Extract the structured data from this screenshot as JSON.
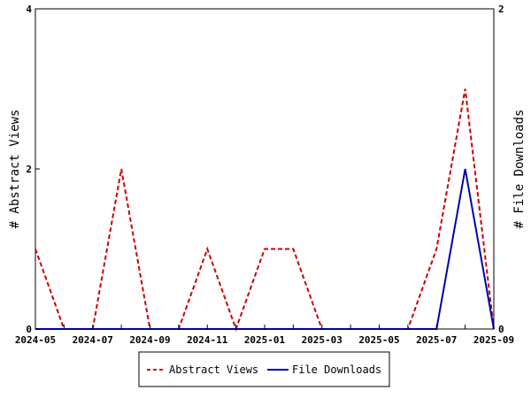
{
  "chart_data": {
    "type": "line",
    "x": [
      "2024-05",
      "2024-06",
      "2024-07",
      "2024-08",
      "2024-09",
      "2024-10",
      "2024-11",
      "2024-12",
      "2025-01",
      "2025-02",
      "2025-03",
      "2025-04",
      "2025-05",
      "2025-06",
      "2025-07",
      "2025-08",
      "2025-09"
    ],
    "x_tick_labels": [
      "2024-05",
      "2024-07",
      "2024-09",
      "2024-11",
      "2025-01",
      "2025-03",
      "2025-05",
      "2025-07",
      "2025-09"
    ],
    "series": [
      {
        "name": "Abstract Views",
        "axis": "left",
        "color": "#cc0000",
        "dash": "dashed",
        "values": [
          1,
          0,
          0,
          2,
          0,
          0,
          1,
          0,
          1,
          1,
          0,
          0,
          0,
          0,
          1,
          3,
          0
        ]
      },
      {
        "name": "File Downloads",
        "axis": "right",
        "color": "#0000aa",
        "dash": "solid",
        "values": [
          0,
          0,
          0,
          0,
          0,
          0,
          0,
          0,
          0,
          0,
          0,
          0,
          0,
          0,
          0,
          1,
          0
        ]
      }
    ],
    "ylabel_left": "# Abstract Views",
    "ylabel_right": "# File Downloads",
    "ylim_left": [
      0,
      4
    ],
    "ylim_right": [
      0,
      2
    ],
    "yticks_left": [
      0,
      2,
      4
    ],
    "yticks_right": [
      0,
      2
    ],
    "grid": false,
    "legend_position": "bottom-center"
  }
}
